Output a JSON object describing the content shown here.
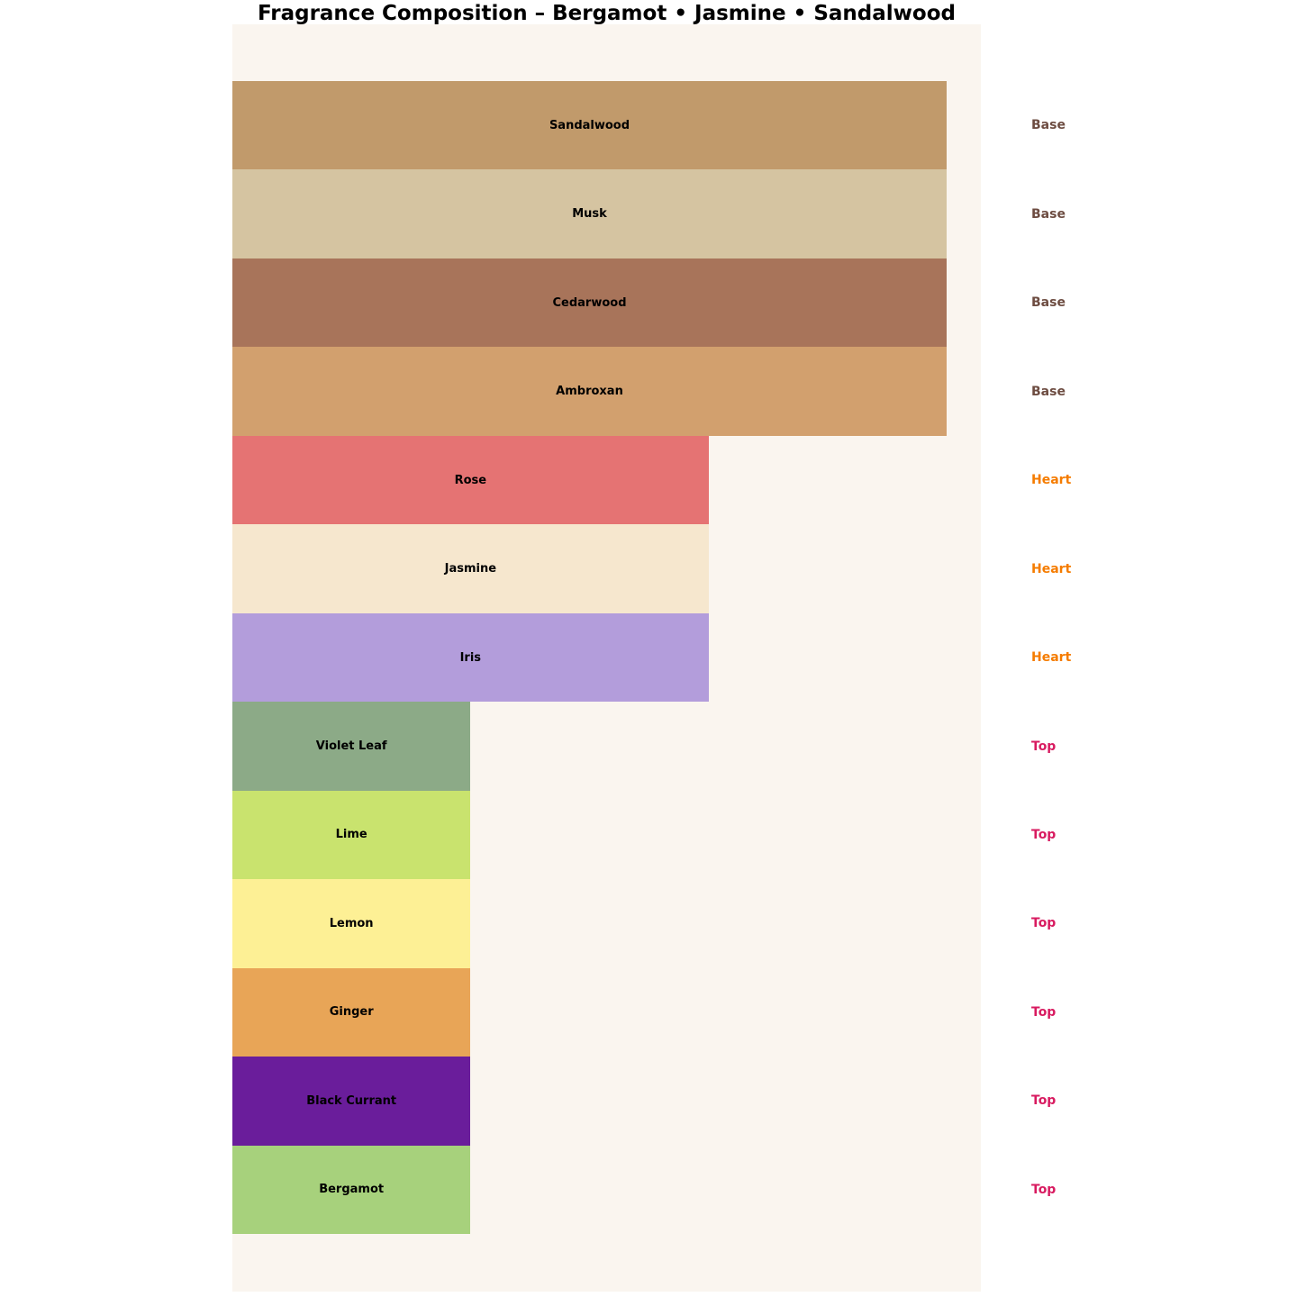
{
  "title": "Fragrance Composition – Bergamot • Jasmine • Sandalwood",
  "colors": {
    "page_bg": "#ffffff",
    "panel_bg": "#faf5ef",
    "bar_label": "#000000"
  },
  "tier_colors": {
    "Base": "#6d4c41",
    "Heart": "#f57c00",
    "Top": "#d81b60"
  },
  "chart_data": {
    "type": "bar",
    "orientation": "horizontal",
    "title": "Fragrance Composition – Bergamot • Jasmine • Sandalwood",
    "xlabel": "",
    "ylabel": "",
    "xlim": [
      0,
      3
    ],
    "grid": false,
    "legend": "none",
    "categories": [
      "Sandalwood",
      "Musk",
      "Cedarwood",
      "Ambroxan",
      "Rose",
      "Jasmine",
      "Iris",
      "Violet Leaf",
      "Lime",
      "Lemon",
      "Ginger",
      "Black Currant",
      "Bergamot"
    ],
    "series": [
      {
        "name": "Note tier strength",
        "values": [
          3,
          3,
          3,
          3,
          2,
          2,
          2,
          1,
          1,
          1,
          1,
          1,
          1
        ]
      }
    ],
    "notes": [
      {
        "label": "Sandalwood",
        "tier": "Base",
        "value": 3,
        "color": "#c19a6b"
      },
      {
        "label": "Musk",
        "tier": "Base",
        "value": 3,
        "color": "#d5c4a1"
      },
      {
        "label": "Cedarwood",
        "tier": "Base",
        "value": 3,
        "color": "#a8745a"
      },
      {
        "label": "Ambroxan",
        "tier": "Base",
        "value": 3,
        "color": "#d2a06e"
      },
      {
        "label": "Rose",
        "tier": "Heart",
        "value": 2,
        "color": "#e57373"
      },
      {
        "label": "Jasmine",
        "tier": "Heart",
        "value": 2,
        "color": "#f6e7ce"
      },
      {
        "label": "Iris",
        "tier": "Heart",
        "value": 2,
        "color": "#b39ddb"
      },
      {
        "label": "Violet Leaf",
        "tier": "Top",
        "value": 1,
        "color": "#8caa87"
      },
      {
        "label": "Lime",
        "tier": "Top",
        "value": 1,
        "color": "#c9e36e"
      },
      {
        "label": "Lemon",
        "tier": "Top",
        "value": 1,
        "color": "#fdf095"
      },
      {
        "label": "Ginger",
        "tier": "Top",
        "value": 1,
        "color": "#e8a557"
      },
      {
        "label": "Black Currant",
        "tier": "Top",
        "value": 1,
        "color": "#6a1d9b"
      },
      {
        "label": "Bergamot",
        "tier": "Top",
        "value": 1,
        "color": "#a7d17c"
      }
    ]
  }
}
